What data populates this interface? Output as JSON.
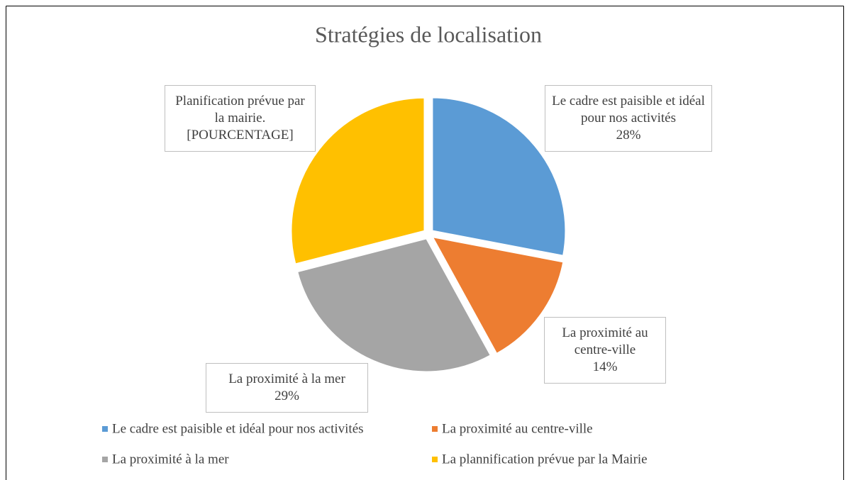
{
  "chart_data": {
    "type": "pie",
    "title": "Stratégies de localisation",
    "categories": [
      "Le cadre est paisible et idéal pour nos activités",
      "La proximité au centre-ville",
      "La proximité à la mer",
      "La plannification prévue par la Mairie"
    ],
    "values": [
      28,
      14,
      29,
      29
    ],
    "value_labels": [
      "28%",
      "14%",
      "29%",
      "[POURCENTAGE]"
    ],
    "label_texts": [
      "Le cadre est paisible et idéal pour nos activités",
      "La proximité au centre-ville",
      "La proximité à la mer",
      "Planification prévue par la mairie."
    ],
    "colors": [
      "#5b9bd5",
      "#ed7d31",
      "#a5a5a5",
      "#ffc000"
    ],
    "legend": "bottom"
  }
}
